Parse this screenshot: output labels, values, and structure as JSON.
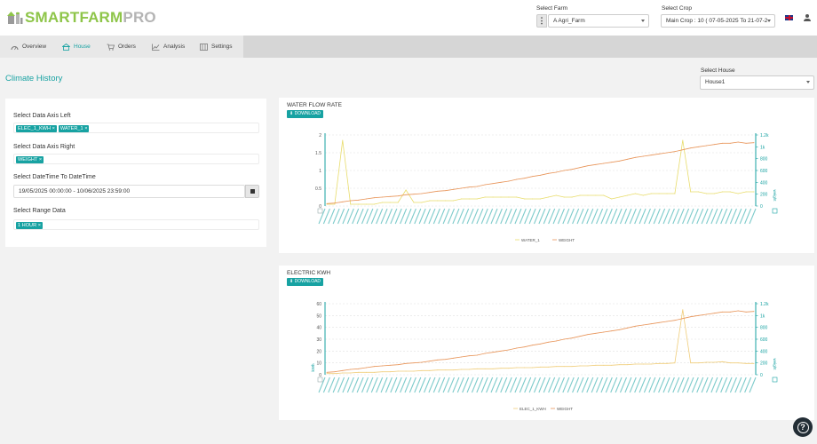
{
  "logo": {
    "part1": "SMARTFARM",
    "part2": "PRO"
  },
  "filters": {
    "farm_label": "Select Farm",
    "farm_value": "A Agri_Farm",
    "crop_label": "Select Crop",
    "crop_value": "Main Crop : 10 ( 07-05-2025 To 21-07-2",
    "house_label": "Select House",
    "house_value": "House1"
  },
  "nav": {
    "items": [
      {
        "label": "Overview",
        "icon": "dashboard-icon"
      },
      {
        "label": "House",
        "icon": "house-icon"
      },
      {
        "label": "Orders",
        "icon": "cart-icon"
      },
      {
        "label": "Analysis",
        "icon": "analysis-chart-icon"
      },
      {
        "label": "Settings",
        "icon": "settings-sliders-icon"
      }
    ],
    "active": "House"
  },
  "page": {
    "title": "Climate History"
  },
  "form": {
    "left_axis_label": "Select Data Axis Left",
    "left_axis_tags": [
      "ELEC_1_KWH",
      "WATER_1"
    ],
    "right_axis_label": "Select Data Axis Right",
    "right_axis_tags": [
      "WEIGHT"
    ],
    "datetime_label": "Select DateTime To DateTime",
    "datetime_value": "19/05/2025 00:00:00 - 10/06/2025 23:59:00",
    "range_label": "Select Range Data",
    "range_tags": [
      "1 HOUR"
    ],
    "tag_remove_glyph": "×"
  },
  "download_label": "DOWNLOAD",
  "charts": [
    {
      "title": "WATER FLOW RATE",
      "left_ticks": [
        "2",
        "1.5",
        "1",
        "0.5",
        "0"
      ],
      "right_ticks": [
        "1.2k",
        "1k",
        "800",
        "600",
        "400",
        "200",
        "0"
      ],
      "left_axis_title": "",
      "right_axis_title": "weight",
      "legend": [
        "WATER_1",
        "WEIGHT"
      ]
    },
    {
      "title": "ELECTRIC KWH",
      "left_ticks": [
        "60",
        "50",
        "40",
        "30",
        "20",
        "10",
        "0"
      ],
      "right_ticks": [
        "1.2k",
        "1k",
        "800",
        "600",
        "400",
        "200",
        "0"
      ],
      "left_axis_title": "kWh",
      "right_axis_title": "weight",
      "legend": [
        "ELEC_1_KWH",
        "WEIGHT"
      ]
    }
  ],
  "chart_data": [
    {
      "type": "line",
      "title": "WATER FLOW RATE",
      "x": "hourly, 19/05/2025 to 10/06/2025",
      "ylim": [
        0,
        2
      ],
      "y2lim": [
        0,
        1200
      ],
      "series": [
        {
          "name": "WATER_1",
          "axis": "left",
          "values": [
            0.05,
            0.05,
            1.85,
            0.05,
            0.05,
            0.05,
            0.05,
            0.1,
            0.1,
            0.1,
            0.45,
            0.1,
            0.1,
            0.15,
            0.15,
            0.15,
            0.15,
            0.2,
            0.2,
            0.2,
            0.25,
            0.25,
            0.25,
            0.25,
            0.25,
            0.2,
            0.2,
            0.2,
            0.25,
            0.3,
            0.25,
            0.25,
            0.3,
            0.3,
            0.3,
            0.3,
            0.2,
            0.25,
            0.3,
            0.35,
            0.3,
            0.35,
            0.35,
            0.35,
            0.35,
            1.85,
            0.4,
            0.4,
            0.35,
            0.35,
            0.4,
            0.4,
            0.35,
            0.4,
            0.4
          ]
        },
        {
          "name": "WEIGHT",
          "axis": "right",
          "values": [
            40,
            50,
            70,
            90,
            100,
            120,
            140,
            150,
            160,
            170,
            190,
            200,
            210,
            230,
            250,
            260,
            280,
            300,
            320,
            330,
            360,
            380,
            400,
            420,
            450,
            470,
            500,
            520,
            550,
            570,
            600,
            620,
            650,
            680,
            700,
            720,
            740,
            760,
            790,
            820,
            840,
            860,
            880,
            900,
            920,
            950,
            980,
            1000,
            1020,
            1040,
            1060,
            1060,
            1080,
            1060,
            1070
          ]
        }
      ],
      "legend": "bottom"
    },
    {
      "type": "line",
      "title": "ELECTRIC KWH",
      "x": "hourly, 19/05/2025 to 10/06/2025",
      "ylim": [
        0,
        60
      ],
      "y2lim": [
        0,
        1200
      ],
      "ylabel": "kWh",
      "y2label": "weight",
      "series": [
        {
          "name": "ELEC_1_KWH",
          "axis": "left",
          "values": [
            1,
            1,
            1.5,
            1.5,
            2,
            2,
            2,
            2.5,
            2.5,
            3,
            3,
            3,
            3.5,
            3.5,
            4,
            4,
            4,
            4.5,
            4.5,
            5,
            5,
            5,
            5.5,
            5.5,
            6,
            6,
            6,
            6.5,
            6.5,
            7,
            7,
            7,
            7.5,
            7.5,
            8,
            8,
            8,
            8.5,
            8.5,
            9,
            9,
            9,
            9.5,
            9.5,
            10,
            55,
            10,
            10,
            10.5,
            10.5,
            11,
            10,
            10,
            9.5,
            9.5
          ]
        },
        {
          "name": "WEIGHT",
          "axis": "right",
          "values": [
            40,
            50,
            70,
            90,
            100,
            120,
            140,
            150,
            160,
            170,
            190,
            200,
            210,
            230,
            250,
            260,
            280,
            300,
            320,
            330,
            360,
            380,
            400,
            420,
            450,
            470,
            500,
            520,
            550,
            570,
            600,
            620,
            650,
            680,
            700,
            720,
            740,
            760,
            790,
            820,
            840,
            860,
            880,
            900,
            920,
            950,
            980,
            1000,
            1020,
            1040,
            1060,
            1060,
            1080,
            1060,
            1070
          ]
        }
      ],
      "legend": "bottom"
    }
  ],
  "colors": {
    "accent": "#17a2a2",
    "weight_line": "#e8955a",
    "water_line": "#e8dc6a",
    "elec_line": "#f0cd7a"
  },
  "help": {
    "glyph": "?"
  }
}
